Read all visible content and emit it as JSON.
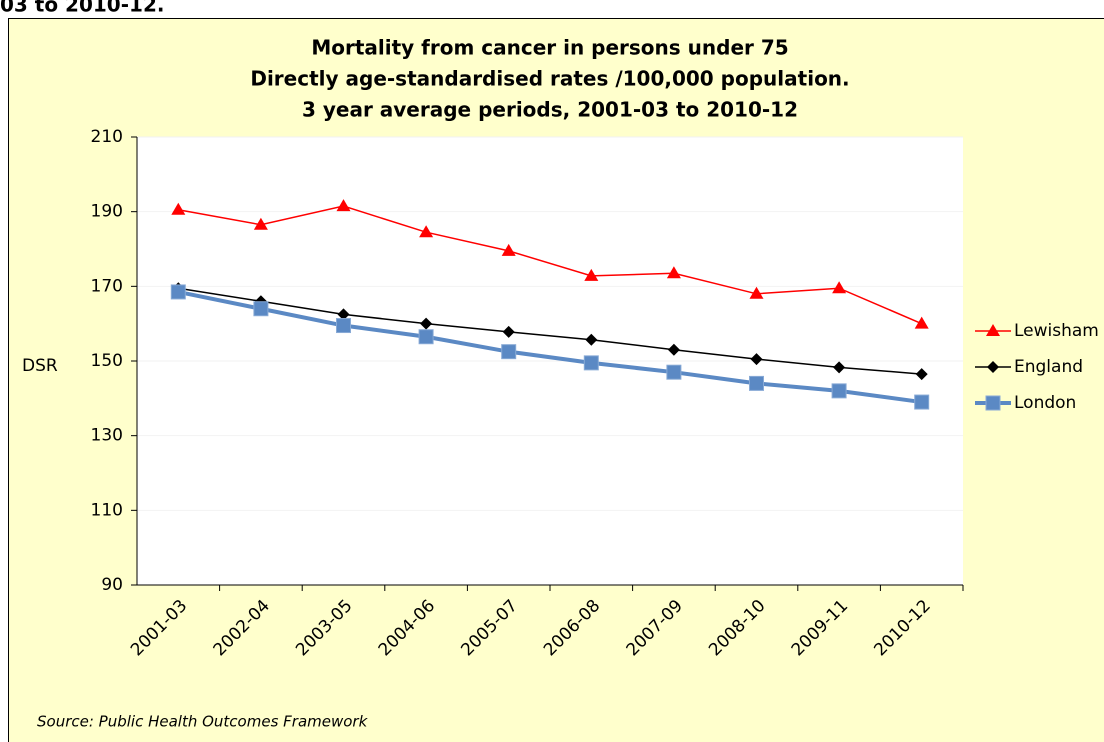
{
  "heading": "03 to 2010-12.",
  "chart_data": {
    "type": "line",
    "title": [
      "Mortality from cancer in persons under 75",
      "Directly age-standardised rates /100,000 population.",
      "3 year average periods, 2001-03 to 2010-12"
    ],
    "y_label": "DSR",
    "source": "Source: Public Health Outcomes Framework",
    "categories": [
      "2001-03",
      "2002-04",
      "2003-05",
      "2004-06",
      "2005-07",
      "2006-08",
      "2007-09",
      "2008-10",
      "2009-11",
      "2010-12"
    ],
    "series": [
      {
        "name": "Lewisham",
        "color": "#ff0000",
        "marker": "triangle",
        "values": [
          190.5,
          186.5,
          191.5,
          184.5,
          179.5,
          172.8,
          173.5,
          168,
          169.5,
          160
        ]
      },
      {
        "name": "England",
        "color": "#000000",
        "marker": "diamond",
        "values": [
          169.5,
          166,
          162.5,
          160,
          157.8,
          155.7,
          153,
          150.5,
          148.3,
          146.5
        ]
      },
      {
        "name": "London",
        "color": "#5b89c4",
        "marker": "square",
        "values": [
          168.5,
          164,
          159.5,
          156.5,
          152.5,
          149.5,
          147,
          144,
          142,
          139
        ]
      }
    ],
    "ylim": [
      90,
      210
    ],
    "yticks": [
      90,
      110,
      130,
      150,
      170,
      190,
      210
    ],
    "grid": true,
    "legend": "right"
  }
}
